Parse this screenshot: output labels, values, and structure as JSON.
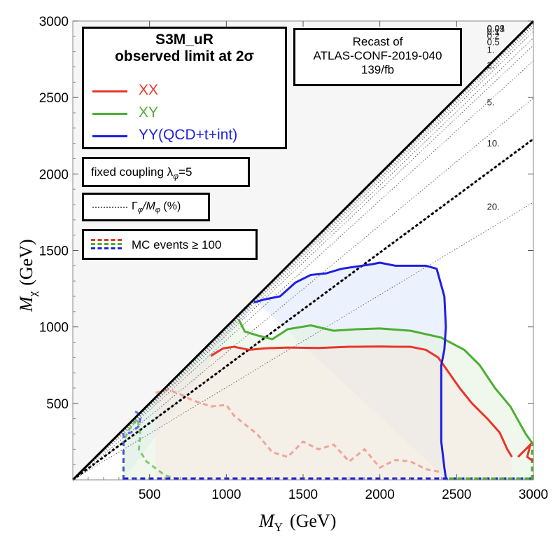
{
  "chart_data": {
    "type": "line",
    "xlabel": "M_Y (GeV)",
    "xlabel_main": "M",
    "xlabel_sub": "Y",
    "xlabel_unit": "(GeV)",
    "ylabel": "M_χ (GeV)",
    "ylabel_main": "M",
    "ylabel_sub": "χ",
    "ylabel_unit": "(GeV)",
    "xlim": [
      0,
      3000
    ],
    "ylim": [
      0,
      3000
    ],
    "xticks": [
      500,
      1000,
      1500,
      2000,
      2500,
      3000
    ],
    "yticks": [
      500,
      1000,
      1500,
      2000,
      2500,
      3000
    ],
    "xtick_labels": [
      "500",
      "1000",
      "1500",
      "2000",
      "2500",
      "3000"
    ],
    "ytick_labels": [
      "500",
      "1000",
      "1500",
      "2000",
      "2500",
      "3000"
    ],
    "legend": {
      "title_line1": "S3M_uR",
      "title_line2": "observed limit at 2σ",
      "entries": [
        {
          "label": "XX",
          "color": "#e8352a"
        },
        {
          "label": "XY",
          "color": "#4caf32"
        },
        {
          "label": "YY(QCD+t+int)",
          "color": "#1f1fe0"
        }
      ]
    },
    "recast_text": [
      "Recast of",
      "ATLAS-CONF-2019-040",
      "139/fb"
    ],
    "coupling_text": "fixed coupling λ",
    "coupling_sub": "φ",
    "coupling_value": "=5",
    "width_text": "Γ",
    "width_sub1": "φ",
    "width_mid": "/M",
    "width_sub2": "φ",
    "width_unit": " (%)",
    "mc_text": "MC events ≥ 100",
    "width_contours": [
      {
        "label": "0.01",
        "slope": 0.9983
      },
      {
        "label": "0.02",
        "slope": 0.9956
      },
      {
        "label": "0.05",
        "slope": 0.9921
      },
      {
        "label": "0.1",
        "slope": 0.9857
      },
      {
        "label": "0.2",
        "slope": 0.9772
      },
      {
        "label": "0.5",
        "slope": 0.9632
      },
      {
        "label": "1.",
        "slope": 0.947
      },
      {
        "label": "2.",
        "slope": 0.9133
      },
      {
        "label": "5.",
        "slope": 0.8321
      },
      {
        "label": "10.",
        "slope": 0.7429
      },
      {
        "label": "20.",
        "slope": 0.6048
      }
    ],
    "dashed_thick_slope": 0.7429,
    "series": [
      {
        "name": "XX",
        "color": "#e8352a",
        "points": [
          [
            900,
            810
          ],
          [
            930,
            830
          ],
          [
            980,
            860
          ],
          [
            1050,
            870
          ],
          [
            1150,
            850
          ],
          [
            1250,
            860
          ],
          [
            1400,
            865
          ],
          [
            1600,
            862
          ],
          [
            1800,
            870
          ],
          [
            2000,
            872
          ],
          [
            2100,
            870
          ],
          [
            2200,
            870
          ],
          [
            2300,
            850
          ],
          [
            2380,
            800
          ],
          [
            2450,
            700
          ],
          [
            2520,
            600
          ],
          [
            2600,
            500
          ],
          [
            2700,
            400
          ],
          [
            2780,
            310
          ],
          [
            2830,
            200
          ],
          [
            2860,
            150
          ]
        ]
      },
      {
        "name": "XY",
        "color": "#4caf32",
        "points": [
          [
            1080,
            1050
          ],
          [
            1120,
            970
          ],
          [
            1200,
            945
          ],
          [
            1300,
            920
          ],
          [
            1400,
            985
          ],
          [
            1550,
            1010
          ],
          [
            1700,
            975
          ],
          [
            1850,
            985
          ],
          [
            2000,
            990
          ],
          [
            2200,
            975
          ],
          [
            2400,
            930
          ],
          [
            2550,
            850
          ],
          [
            2650,
            750
          ],
          [
            2750,
            600
          ],
          [
            2850,
            480
          ],
          [
            2950,
            300
          ],
          [
            3000,
            230
          ]
        ]
      },
      {
        "name": "YY(QCD+t+int)",
        "color": "#1f1fe0",
        "points": [
          [
            1180,
            1160
          ],
          [
            1250,
            1180
          ],
          [
            1350,
            1200
          ],
          [
            1450,
            1290
          ],
          [
            1550,
            1340
          ],
          [
            1650,
            1350
          ],
          [
            1750,
            1380
          ],
          [
            1850,
            1395
          ],
          [
            1950,
            1410
          ],
          [
            2000,
            1420
          ],
          [
            2100,
            1400
          ],
          [
            2300,
            1400
          ],
          [
            2370,
            1380
          ],
          [
            2420,
            1200
          ],
          [
            2430,
            1000
          ],
          [
            2420,
            850
          ],
          [
            2400,
            750
          ],
          [
            2400,
            500
          ],
          [
            2400,
            250
          ],
          [
            2420,
            80
          ],
          [
            2430,
            10
          ],
          [
            2440,
            0
          ]
        ]
      }
    ],
    "mc_boundaries": [
      {
        "name": "XX",
        "color": "#e8352a",
        "points": [
          [
            540,
            570
          ],
          [
            620,
            590
          ],
          [
            700,
            560
          ],
          [
            780,
            520
          ],
          [
            900,
            480
          ],
          [
            1000,
            490
          ],
          [
            1050,
            420
          ],
          [
            1100,
            380
          ],
          [
            1200,
            300
          ],
          [
            1300,
            180
          ],
          [
            1400,
            150
          ],
          [
            1500,
            250
          ],
          [
            1600,
            200
          ],
          [
            1700,
            230
          ],
          [
            1800,
            120
          ],
          [
            1900,
            200
          ],
          [
            2000,
            80
          ],
          [
            2100,
            130
          ],
          [
            2200,
            120
          ],
          [
            2300,
            70
          ],
          [
            2400,
            50
          ]
        ]
      },
      {
        "name": "XY",
        "color": "#4caf32",
        "points": [
          [
            330,
            0
          ],
          [
            330,
            250
          ],
          [
            360,
            320
          ],
          [
            420,
            400
          ],
          [
            440,
            300
          ],
          [
            430,
            200
          ],
          [
            480,
            120
          ],
          [
            600,
            30
          ],
          [
            700,
            0
          ]
        ]
      },
      {
        "name": "YY(QCD+t+int)",
        "color": "#1f1fe0",
        "points": [
          [
            330,
            0
          ],
          [
            330,
            300
          ],
          [
            380,
            310
          ],
          [
            430,
            350
          ],
          [
            440,
            400
          ],
          [
            420,
            440
          ],
          [
            400,
            450
          ]
        ]
      }
    ]
  }
}
